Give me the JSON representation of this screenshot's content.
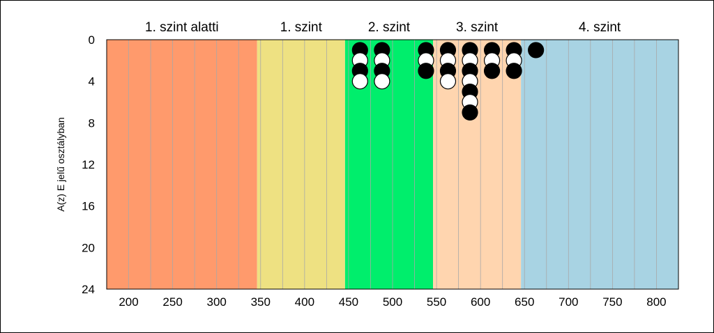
{
  "chart_data": {
    "type": "scatter",
    "ylabel": "A(z) E jelű osztályban",
    "x_range": [
      175,
      825
    ],
    "y_range": [
      0,
      24
    ],
    "y_inverted": true,
    "x_ticks": [
      200,
      250,
      300,
      350,
      400,
      450,
      500,
      550,
      600,
      650,
      700,
      750,
      800
    ],
    "y_ticks": [
      0,
      4,
      8,
      12,
      16,
      20,
      24
    ],
    "bands": [
      {
        "label": "1. szint alatti",
        "from": 175,
        "to": 346,
        "color": "#FF9A6C"
      },
      {
        "label": "1. szint",
        "from": 346,
        "to": 446,
        "color": "#EEE182"
      },
      {
        "label": "2. szint",
        "from": 446,
        "to": 546,
        "color": "#00EE6C"
      },
      {
        "label": "3. szint",
        "from": 546,
        "to": 646,
        "color": "#FFD5AF"
      },
      {
        "label": "4. szint",
        "from": 646,
        "to": 825,
        "color": "#A8D3E3"
      }
    ],
    "columns": [
      {
        "x": 463,
        "dots": [
          "black",
          "white",
          "black",
          "white"
        ]
      },
      {
        "x": 488,
        "dots": [
          "black",
          "white",
          "black",
          "white"
        ]
      },
      {
        "x": 538,
        "dots": [
          "black",
          "white",
          "black"
        ]
      },
      {
        "x": 563,
        "dots": [
          "black",
          "white",
          "black",
          "white"
        ]
      },
      {
        "x": 588,
        "dots": [
          "black",
          "white",
          "black",
          "white",
          "black",
          "white",
          "black"
        ]
      },
      {
        "x": 613,
        "dots": [
          "black",
          "white",
          "black"
        ]
      },
      {
        "x": 638,
        "dots": [
          "black",
          "white",
          "black"
        ]
      },
      {
        "x": 663,
        "dots": [
          "black"
        ]
      }
    ],
    "grid": true
  }
}
